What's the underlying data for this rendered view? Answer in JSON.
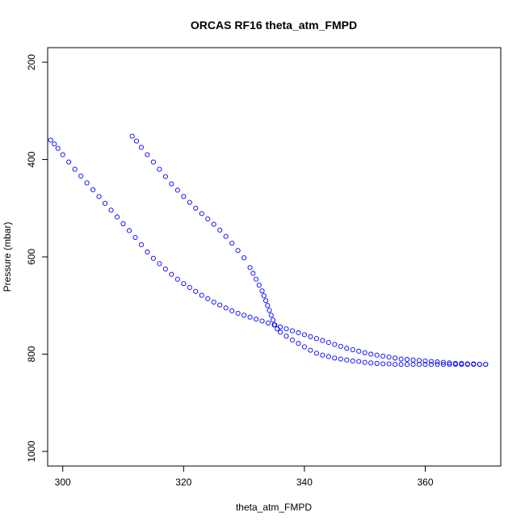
{
  "chart_data": {
    "type": "scatter",
    "title": "ORCAS RF16 theta_atm_FMPD",
    "xlabel": "theta_atm_FMPD",
    "ylabel": "Pressure (mbar)",
    "xlim": [
      297.5,
      372.5
    ],
    "ylim": [
      1030,
      170
    ],
    "y_reversed": true,
    "x_ticks": [
      300,
      320,
      340,
      360
    ],
    "y_ticks": [
      200,
      400,
      600,
      800,
      1000
    ],
    "grid": false,
    "legend": "none",
    "marker": "open-circle",
    "point_color": "#0000ff",
    "series": [
      {
        "points": [
          [
            298.0,
            360
          ],
          [
            298.6,
            368
          ],
          [
            299.2,
            377
          ],
          [
            300.0,
            390
          ],
          [
            301.0,
            405
          ],
          [
            302.0,
            420
          ],
          [
            303.0,
            434
          ],
          [
            304.0,
            448
          ],
          [
            305.0,
            462
          ],
          [
            306.0,
            476
          ],
          [
            307.0,
            490
          ],
          [
            308.0,
            504
          ],
          [
            309.0,
            518
          ],
          [
            310.0,
            532
          ],
          [
            311.0,
            546
          ],
          [
            312.0,
            560
          ],
          [
            313.0,
            575
          ],
          [
            314.0,
            590
          ],
          [
            315.0,
            603
          ],
          [
            316.0,
            614
          ],
          [
            317.0,
            625
          ],
          [
            318.0,
            636
          ],
          [
            319.0,
            646
          ],
          [
            320.0,
            655
          ],
          [
            321.0,
            663
          ],
          [
            322.0,
            671
          ],
          [
            323.0,
            679
          ],
          [
            324.0,
            686
          ],
          [
            325.0,
            693
          ],
          [
            326.0,
            699
          ],
          [
            327.0,
            705
          ],
          [
            328.0,
            711
          ],
          [
            329.0,
            716
          ],
          [
            330.0,
            720
          ],
          [
            331.0,
            724
          ],
          [
            332.0,
            728
          ],
          [
            333.0,
            732
          ],
          [
            334.0,
            736
          ],
          [
            335.0,
            740
          ],
          [
            336.0,
            744
          ],
          [
            337.0,
            748
          ],
          [
            338.0,
            752
          ],
          [
            339.0,
            756
          ],
          [
            340.0,
            760
          ],
          [
            341.0,
            764
          ],
          [
            342.0,
            768
          ],
          [
            343.0,
            772
          ],
          [
            344.0,
            776
          ],
          [
            345.0,
            780
          ],
          [
            346.0,
            784
          ],
          [
            347.0,
            788
          ],
          [
            348.0,
            791
          ],
          [
            349.0,
            794
          ],
          [
            350.0,
            797
          ],
          [
            351.0,
            800
          ],
          [
            352.0,
            802
          ],
          [
            353.0,
            804
          ],
          [
            354.0,
            806
          ],
          [
            355.0,
            808
          ],
          [
            356.0,
            810
          ],
          [
            357.0,
            811
          ],
          [
            358.0,
            812
          ],
          [
            359.0,
            813
          ],
          [
            360.0,
            814
          ],
          [
            361.0,
            815
          ],
          [
            362.0,
            816
          ],
          [
            363.0,
            817
          ],
          [
            364.0,
            818
          ],
          [
            365.0,
            819
          ],
          [
            366.0,
            819
          ],
          [
            367.0,
            820
          ],
          [
            368.0,
            820
          ],
          [
            369.0,
            821
          ],
          [
            370.0,
            821
          ]
        ]
      },
      {
        "points": [
          [
            311.5,
            352
          ],
          [
            312.2,
            362
          ],
          [
            313.0,
            375
          ],
          [
            314.0,
            390
          ],
          [
            315.0,
            405
          ],
          [
            316.0,
            420
          ],
          [
            317.0,
            435
          ],
          [
            318.0,
            450
          ],
          [
            319.0,
            463
          ],
          [
            320.0,
            476
          ],
          [
            321.0,
            488
          ],
          [
            322.0,
            500
          ],
          [
            323.0,
            511
          ],
          [
            324.0,
            522
          ],
          [
            325.0,
            533
          ],
          [
            326.0,
            545
          ],
          [
            327.0,
            558
          ],
          [
            328.0,
            572
          ],
          [
            329.0,
            587
          ],
          [
            330.0,
            602
          ],
          [
            331.0,
            622
          ],
          [
            331.5,
            634
          ],
          [
            332.0,
            646
          ],
          [
            332.5,
            658
          ],
          [
            333.0,
            670
          ],
          [
            333.3,
            680
          ],
          [
            333.6,
            690
          ],
          [
            333.9,
            700
          ],
          [
            334.2,
            710
          ],
          [
            334.5,
            720
          ],
          [
            334.8,
            730
          ],
          [
            335.1,
            740
          ],
          [
            335.5,
            748
          ],
          [
            336.0,
            755
          ],
          [
            337.0,
            763
          ],
          [
            338.0,
            771
          ],
          [
            339.0,
            778
          ],
          [
            340.0,
            785
          ],
          [
            341.0,
            792
          ],
          [
            342.0,
            798
          ],
          [
            343.0,
            802
          ],
          [
            344.0,
            805
          ],
          [
            345.0,
            808
          ],
          [
            346.0,
            810
          ],
          [
            347.0,
            812
          ],
          [
            348.0,
            814
          ],
          [
            349.0,
            815
          ],
          [
            350.0,
            817
          ],
          [
            351.0,
            818
          ],
          [
            352.0,
            819
          ],
          [
            353.0,
            820
          ],
          [
            354.0,
            820
          ],
          [
            355.0,
            821
          ],
          [
            356.0,
            821
          ],
          [
            357.0,
            821
          ],
          [
            358.0,
            821
          ],
          [
            359.0,
            821
          ],
          [
            360.0,
            821
          ],
          [
            361.0,
            821
          ],
          [
            362.0,
            821
          ],
          [
            363.0,
            821
          ],
          [
            364.0,
            821
          ],
          [
            365.0,
            821
          ],
          [
            366.0,
            821
          ],
          [
            367.0,
            821
          ],
          [
            368.0,
            821
          ],
          [
            369.0,
            821
          ],
          [
            370.0,
            821
          ]
        ]
      }
    ]
  }
}
